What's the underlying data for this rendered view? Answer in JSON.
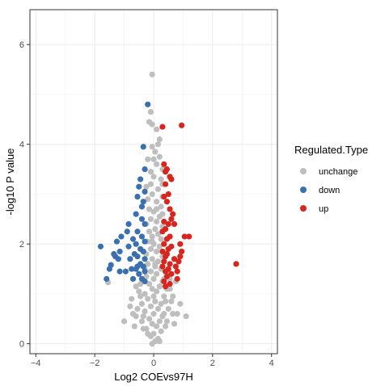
{
  "chart_data": {
    "type": "scatter",
    "title": "",
    "xlabel": "Log2 COEvs97H",
    "ylabel": "-log10 P value",
    "xlim": [
      -4.2,
      4.2
    ],
    "ylim": [
      -0.2,
      6.7
    ],
    "x_ticks": [
      -4,
      -2,
      0,
      2,
      4
    ],
    "y_ticks": [
      0,
      2,
      4,
      6
    ],
    "grid": true,
    "legend": {
      "title": "Regulated.Type",
      "placement": "right",
      "entries": [
        "unchange",
        "down",
        "up"
      ]
    },
    "colors": {
      "unchange": "#bebebe",
      "down": "#3a6fb0",
      "up": "#d7261e"
    },
    "series": [
      {
        "name": "unchange",
        "points": [
          [
            -0.05,
            5.4
          ],
          [
            -0.1,
            4.65
          ],
          [
            -0.15,
            4.45
          ],
          [
            -0.05,
            4.4
          ],
          [
            0.1,
            4.3
          ],
          [
            0.2,
            4.1
          ],
          [
            0.15,
            4.0
          ],
          [
            -0.05,
            3.95
          ],
          [
            0.05,
            3.85
          ],
          [
            0.2,
            3.75
          ],
          [
            -0.2,
            3.7
          ],
          [
            0.1,
            3.6
          ],
          [
            0.3,
            3.5
          ],
          [
            -0.1,
            3.45
          ],
          [
            0.0,
            3.35
          ],
          [
            0.25,
            3.3
          ],
          [
            0.3,
            3.2
          ],
          [
            -0.25,
            3.15
          ],
          [
            0.15,
            3.1
          ],
          [
            -0.05,
            3.0
          ],
          [
            0.3,
            2.95
          ],
          [
            -0.2,
            2.9
          ],
          [
            0.1,
            2.85
          ],
          [
            0.25,
            2.75
          ],
          [
            -0.15,
            2.7
          ],
          [
            0.0,
            2.65
          ],
          [
            0.3,
            2.6
          ],
          [
            0.2,
            2.55
          ],
          [
            -0.1,
            2.5
          ],
          [
            0.1,
            2.45
          ],
          [
            -0.25,
            2.4
          ],
          [
            0.3,
            2.35
          ],
          [
            0.05,
            2.3
          ],
          [
            -0.15,
            2.25
          ],
          [
            0.15,
            2.2
          ],
          [
            -0.05,
            2.15
          ],
          [
            0.25,
            2.1
          ],
          [
            -0.2,
            2.05
          ],
          [
            0.0,
            2.0
          ],
          [
            0.2,
            1.95
          ],
          [
            -0.1,
            1.9
          ],
          [
            0.1,
            1.85
          ],
          [
            -0.25,
            1.8
          ],
          [
            0.3,
            1.75
          ],
          [
            -0.05,
            1.7
          ],
          [
            0.15,
            1.65
          ],
          [
            -0.2,
            1.6
          ],
          [
            0.05,
            1.55
          ],
          [
            0.25,
            1.5
          ],
          [
            -0.1,
            1.45
          ],
          [
            0.1,
            1.4
          ],
          [
            -0.25,
            1.35
          ],
          [
            0.0,
            1.3
          ],
          [
            0.3,
            1.25
          ],
          [
            -0.15,
            1.2
          ],
          [
            0.2,
            1.15
          ],
          [
            -0.05,
            1.1
          ],
          [
            0.1,
            1.05
          ],
          [
            -0.3,
            1.0
          ],
          [
            0.35,
            0.95
          ],
          [
            -0.2,
            0.9
          ],
          [
            0.05,
            0.85
          ],
          [
            0.25,
            0.8
          ],
          [
            -0.1,
            0.75
          ],
          [
            0.15,
            0.7
          ],
          [
            -0.3,
            0.65
          ],
          [
            0.0,
            0.6
          ],
          [
            0.3,
            0.55
          ],
          [
            -0.15,
            0.5
          ],
          [
            0.2,
            0.45
          ],
          [
            -0.05,
            0.4
          ],
          [
            0.1,
            0.35
          ],
          [
            -0.25,
            0.3
          ],
          [
            0.25,
            0.25
          ],
          [
            0.0,
            0.2
          ],
          [
            -0.1,
            0.15
          ],
          [
            0.15,
            0.1
          ],
          [
            0.05,
            0.05
          ],
          [
            -0.05,
            0.0
          ],
          [
            0.35,
            0.6
          ],
          [
            -0.35,
            0.55
          ],
          [
            0.4,
            0.85
          ],
          [
            -0.4,
            0.8
          ],
          [
            0.45,
            1.1
          ],
          [
            -0.45,
            1.2
          ],
          [
            0.5,
            1.4
          ],
          [
            0.55,
            1.1
          ],
          [
            -0.5,
            1.05
          ],
          [
            0.6,
            0.85
          ],
          [
            -0.55,
            0.7
          ],
          [
            0.65,
            0.6
          ],
          [
            -0.6,
            0.55
          ],
          [
            0.7,
            0.4
          ],
          [
            -0.65,
            0.35
          ],
          [
            0.75,
            1.25
          ],
          [
            0.9,
            0.8
          ],
          [
            -0.8,
            0.75
          ],
          [
            -1.0,
            0.45
          ],
          [
            1.1,
            0.55
          ],
          [
            -1.55,
            1.23
          ],
          [
            -0.35,
            0.3
          ],
          [
            0.4,
            0.35
          ],
          [
            -0.3,
            1.5
          ],
          [
            0.35,
            1.3
          ],
          [
            -0.45,
            0.95
          ],
          [
            0.5,
            0.7
          ],
          [
            -0.2,
            0.2
          ],
          [
            0.2,
            0.05
          ],
          [
            -0.4,
            0.45
          ],
          [
            0.45,
            0.45
          ],
          [
            0.0,
            0.95
          ],
          [
            0.05,
            1.6
          ],
          [
            -0.05,
            2.05
          ],
          [
            0.1,
            2.7
          ],
          [
            -0.1,
            3.2
          ],
          [
            0.0,
            3.7
          ],
          [
            -0.6,
            1.15
          ],
          [
            0.55,
            1.3
          ],
          [
            0.65,
            0.95
          ],
          [
            -0.7,
            0.6
          ],
          [
            0.8,
            0.6
          ],
          [
            -0.75,
            0.9
          ]
        ]
      },
      {
        "name": "down",
        "points": [
          [
            -0.2,
            4.8
          ],
          [
            -0.35,
            3.95
          ],
          [
            -0.3,
            3.5
          ],
          [
            -0.45,
            3.3
          ],
          [
            -0.3,
            3.05
          ],
          [
            -0.55,
            2.95
          ],
          [
            -0.35,
            2.85
          ],
          [
            -0.6,
            2.6
          ],
          [
            -0.4,
            2.5
          ],
          [
            -0.3,
            2.4
          ],
          [
            -0.55,
            2.25
          ],
          [
            -0.4,
            2.15
          ],
          [
            -0.3,
            2.05
          ],
          [
            -0.6,
            2.0
          ],
          [
            -0.45,
            1.9
          ],
          [
            -0.35,
            1.85
          ],
          [
            -0.55,
            1.75
          ],
          [
            -0.3,
            1.7
          ],
          [
            -0.45,
            1.6
          ],
          [
            -0.35,
            1.55
          ],
          [
            -0.6,
            1.5
          ],
          [
            -0.3,
            1.45
          ],
          [
            -0.5,
            1.4
          ],
          [
            -0.4,
            1.3
          ],
          [
            -0.3,
            1.25
          ],
          [
            -0.55,
            1.55
          ],
          [
            -0.65,
            1.8
          ],
          [
            -0.7,
            2.1
          ],
          [
            -0.85,
            2.4
          ],
          [
            -0.9,
            2.25
          ],
          [
            -0.85,
            1.95
          ],
          [
            -0.8,
            1.7
          ],
          [
            -0.75,
            1.5
          ],
          [
            -0.95,
            1.45
          ],
          [
            -1.1,
            2.15
          ],
          [
            -1.15,
            1.85
          ],
          [
            -1.2,
            1.7
          ],
          [
            -1.25,
            2.05
          ],
          [
            -1.3,
            1.75
          ],
          [
            -1.35,
            1.8
          ],
          [
            -1.45,
            1.58
          ],
          [
            -1.5,
            1.5
          ],
          [
            -1.8,
            1.95
          ],
          [
            -1.15,
            1.45
          ],
          [
            -0.7,
            1.3
          ],
          [
            -1.6,
            1.3
          ],
          [
            -0.5,
            3.15
          ],
          [
            -0.4,
            2.75
          ]
        ]
      },
      {
        "name": "up",
        "points": [
          [
            0.3,
            4.35
          ],
          [
            0.95,
            4.38
          ],
          [
            0.35,
            3.6
          ],
          [
            0.4,
            3.45
          ],
          [
            0.55,
            3.35
          ],
          [
            0.4,
            3.2
          ],
          [
            0.5,
            3.0
          ],
          [
            0.35,
            2.95
          ],
          [
            0.45,
            2.85
          ],
          [
            0.55,
            2.7
          ],
          [
            0.6,
            2.5
          ],
          [
            0.35,
            2.45
          ],
          [
            0.5,
            2.4
          ],
          [
            0.4,
            2.3
          ],
          [
            0.3,
            2.25
          ],
          [
            0.55,
            2.15
          ],
          [
            0.45,
            2.1
          ],
          [
            0.35,
            2.0
          ],
          [
            0.6,
            1.95
          ],
          [
            0.5,
            1.9
          ],
          [
            0.3,
            1.85
          ],
          [
            0.45,
            1.8
          ],
          [
            0.4,
            1.75
          ],
          [
            0.35,
            1.65
          ],
          [
            0.55,
            1.6
          ],
          [
            0.3,
            1.55
          ],
          [
            0.5,
            1.5
          ],
          [
            0.4,
            1.45
          ],
          [
            0.6,
            1.4
          ],
          [
            0.45,
            1.35
          ],
          [
            0.35,
            1.25
          ],
          [
            0.55,
            1.2
          ],
          [
            0.4,
            1.15
          ],
          [
            0.7,
            1.7
          ],
          [
            0.75,
            1.55
          ],
          [
            0.8,
            1.45
          ],
          [
            0.85,
            1.65
          ],
          [
            0.9,
            1.75
          ],
          [
            0.95,
            1.85
          ],
          [
            1.05,
            2.15
          ],
          [
            1.2,
            2.15
          ],
          [
            0.9,
            2.0
          ],
          [
            0.8,
            1.3
          ],
          [
            0.7,
            2.4
          ],
          [
            0.65,
            2.6
          ],
          [
            0.6,
            3.3
          ],
          [
            0.45,
            3.5
          ],
          [
            2.8,
            1.6
          ]
        ]
      }
    ]
  }
}
